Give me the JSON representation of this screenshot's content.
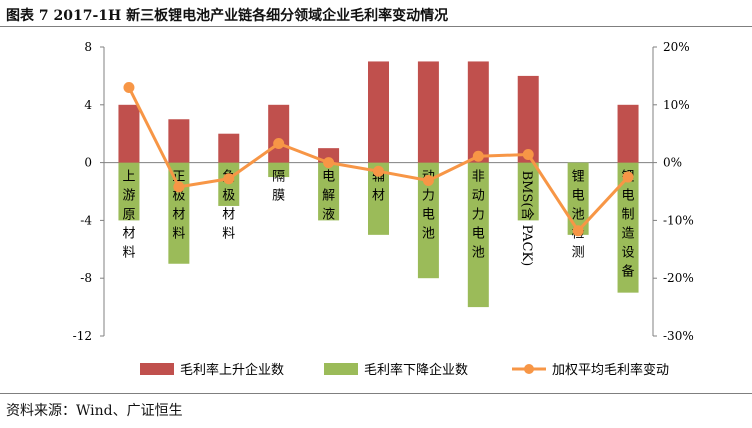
{
  "title": "图表 7 2017-1H 新三板锂电池产业链各细分领域企业毛利率变动情况",
  "source": "资料来源：Wind、广证恒生",
  "chart_data": {
    "type": "bar",
    "categories": [
      "上游原材料",
      "正极材料",
      "负极材料",
      "隔膜",
      "电解液",
      "辅材",
      "动力电池",
      "非动力电池",
      "BMS(含PACK)",
      "锂电池检测",
      "锂电制造设备"
    ],
    "category_labels": [
      "上游原材料",
      "正极材料",
      "负极材料",
      "隔膜",
      "电解液",
      "辅材",
      "动力电池",
      "非动力电池",
      "",
      "锂电池检测",
      "锂电制造设备"
    ],
    "bms_label": "BMS(含 PACK)",
    "series": [
      {
        "name": "毛利率上升企业数",
        "type": "bar",
        "axis": "left",
        "color": "#c0504d",
        "values": [
          4,
          3,
          2,
          4,
          1,
          7,
          7,
          7,
          6,
          0,
          4
        ]
      },
      {
        "name": "毛利率下降企业数",
        "type": "bar",
        "axis": "left",
        "color": "#9bbb59",
        "values": [
          -4,
          -7,
          -3,
          -1,
          -4,
          -5,
          -8,
          -10,
          -4,
          -5,
          -9
        ]
      },
      {
        "name": "加权平均毛利率变动",
        "type": "line",
        "axis": "right",
        "color": "#f79646",
        "values": [
          13.0,
          -4.2,
          -2.8,
          3.3,
          0.0,
          -1.5,
          -3.1,
          1.1,
          1.4,
          -11.8,
          -2.5
        ]
      }
    ],
    "y_left": {
      "min": -12,
      "max": 8,
      "ticks": [
        8,
        4,
        0,
        -4,
        -8,
        -12
      ],
      "tick_labels": [
        "8",
        "4",
        "0",
        "-4",
        "-8",
        "-12"
      ]
    },
    "y_right": {
      "min": -30,
      "max": 20,
      "ticks": [
        20,
        10,
        0,
        -10,
        -20,
        -30
      ],
      "tick_labels": [
        "20%",
        "10%",
        "0%",
        "-10%",
        "-20%",
        "-30%"
      ]
    },
    "legend": [
      {
        "label": "毛利率上升企业数",
        "kind": "bar",
        "color": "#c0504d"
      },
      {
        "label": "毛利率下降企业数",
        "kind": "bar",
        "color": "#9bbb59"
      },
      {
        "label": "加权平均毛利率变动",
        "kind": "line",
        "color": "#f79646"
      }
    ],
    "legend_position": "bottom"
  }
}
